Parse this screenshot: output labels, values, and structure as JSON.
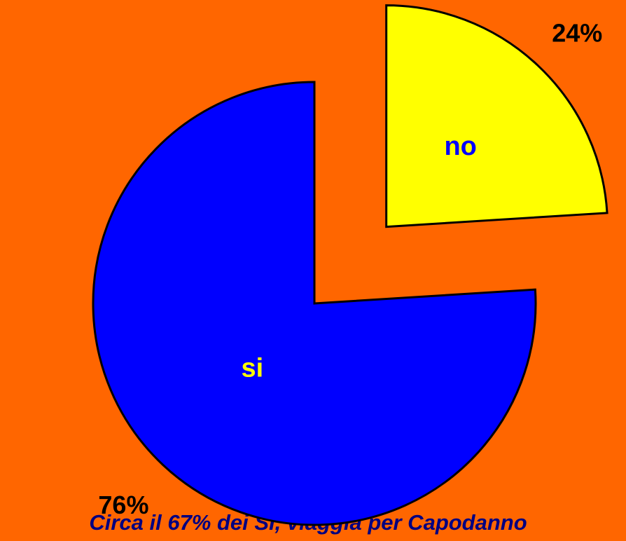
{
  "chart_data": {
    "type": "pie",
    "categories": [
      "no",
      "si"
    ],
    "values": [
      24,
      76
    ],
    "value_labels": [
      "24%",
      "76%"
    ],
    "colors": [
      "#ffff00",
      "#0000ff"
    ],
    "label_colors": [
      "#0000ff",
      "#ffff00"
    ],
    "annotation": "Circa il 67% dei SI, viaggia per Capodanno"
  }
}
